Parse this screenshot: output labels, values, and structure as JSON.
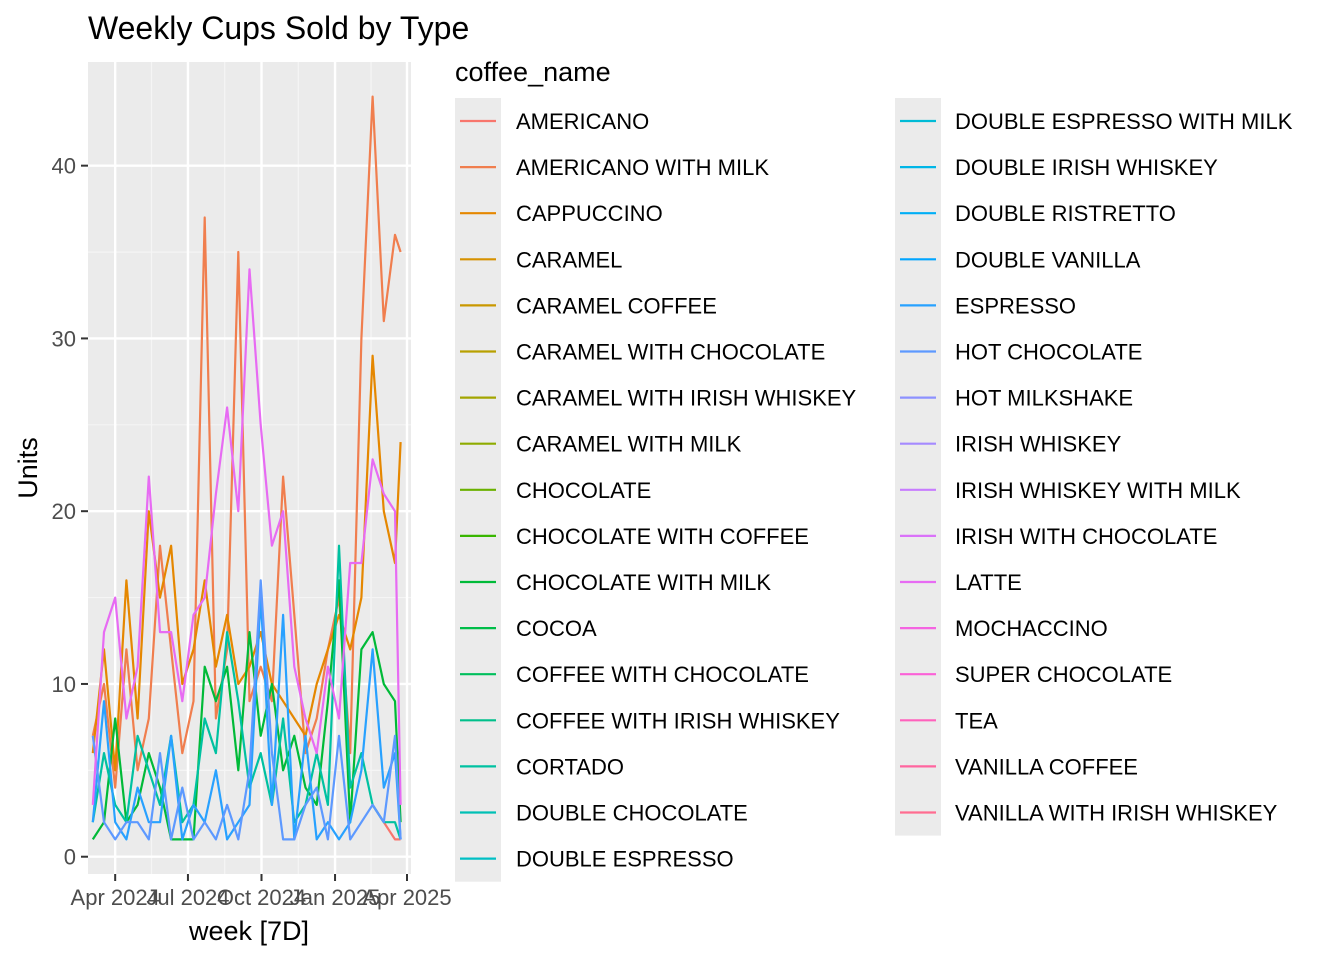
{
  "chart_data": {
    "type": "line",
    "title": "Weekly Cups Sold by Type",
    "xlabel": "week [7D]",
    "ylabel": "Units",
    "legend_title": "coffee_name",
    "legend_placement": "right",
    "grid": true,
    "ylim": [
      -1,
      46
    ],
    "xlim": [
      "2024-02-27",
      "2025-04-06"
    ],
    "x_ticks": [
      {
        "date": "2024-04-01",
        "label": "Apr 2024"
      },
      {
        "date": "2024-07-01",
        "label": "Jul 2024"
      },
      {
        "date": "2024-10-01",
        "label": "Oct 2024"
      },
      {
        "date": "2025-01-01",
        "label": "Jan 2025"
      },
      {
        "date": "2025-04-01",
        "label": "Apr 2025"
      }
    ],
    "y_ticks": [
      0,
      10,
      20,
      30,
      40
    ],
    "x": [
      "2024-03-04",
      "2024-03-18",
      "2024-04-01",
      "2024-04-15",
      "2024-04-29",
      "2024-05-13",
      "2024-05-27",
      "2024-06-10",
      "2024-06-24",
      "2024-07-08",
      "2024-07-22",
      "2024-08-05",
      "2024-08-19",
      "2024-09-02",
      "2024-09-16",
      "2024-09-30",
      "2024-10-14",
      "2024-10-28",
      "2024-11-11",
      "2024-11-25",
      "2024-12-09",
      "2024-12-23",
      "2025-01-06",
      "2025-01-20",
      "2025-02-03",
      "2025-02-17",
      "2025-03-03",
      "2025-03-17",
      "2025-03-24"
    ],
    "series": [
      {
        "name": "AMERICANO",
        "color": "#F8766D",
        "values": [
          null,
          null,
          null,
          null,
          null,
          null,
          null,
          null,
          null,
          null,
          null,
          null,
          null,
          null,
          null,
          null,
          null,
          null,
          null,
          null,
          null,
          null,
          null,
          null,
          null,
          3,
          2,
          1,
          1
        ]
      },
      {
        "name": "AMERICANO WITH MILK",
        "color": "#F07E4E",
        "values": [
          7,
          10,
          4,
          12,
          5,
          8,
          18,
          12,
          6,
          9,
          37,
          8,
          12,
          35,
          9,
          11,
          9,
          22,
          14,
          6,
          8,
          12,
          15,
          6,
          30,
          44,
          31,
          36,
          35
        ]
      },
      {
        "name": "CAPPUCCINO",
        "color": "#E58700",
        "values": [
          6,
          12,
          5,
          16,
          8,
          20,
          15,
          18,
          10,
          12,
          16,
          11,
          14,
          10,
          11,
          13,
          10,
          9,
          8,
          7,
          10,
          12,
          14,
          12,
          15,
          29,
          20,
          17,
          24
        ]
      },
      {
        "name": "CARAMEL",
        "color": "#D69100",
        "values": [
          null,
          null,
          null,
          null,
          null,
          null,
          null,
          null,
          null,
          null,
          null,
          null,
          null,
          null,
          null,
          null,
          null,
          null,
          null,
          null,
          null,
          null,
          null,
          null,
          null,
          null,
          null,
          null,
          null
        ]
      },
      {
        "name": "CARAMEL COFFEE",
        "color": "#C99800",
        "values": [
          null,
          null,
          null,
          null,
          null,
          null,
          null,
          null,
          null,
          null,
          null,
          null,
          null,
          null,
          null,
          null,
          null,
          null,
          null,
          null,
          null,
          null,
          null,
          null,
          null,
          null,
          null,
          null,
          null
        ]
      },
      {
        "name": "CARAMEL WITH CHOCOLATE",
        "color": "#B8A000",
        "values": [
          null,
          null,
          null,
          null,
          null,
          null,
          null,
          null,
          null,
          null,
          null,
          null,
          null,
          null,
          null,
          null,
          null,
          null,
          null,
          null,
          null,
          null,
          null,
          null,
          null,
          null,
          null,
          null,
          null
        ]
      },
      {
        "name": "CARAMEL WITH IRISH WHISKEY",
        "color": "#A3A500",
        "values": [
          null,
          null,
          null,
          null,
          null,
          null,
          null,
          null,
          null,
          null,
          null,
          null,
          null,
          null,
          null,
          null,
          null,
          null,
          null,
          null,
          null,
          null,
          null,
          null,
          null,
          null,
          null,
          null,
          null
        ]
      },
      {
        "name": "CARAMEL WITH MILK",
        "color": "#8EAB00",
        "values": [
          null,
          null,
          null,
          null,
          null,
          null,
          null,
          null,
          null,
          null,
          null,
          null,
          null,
          null,
          null,
          null,
          null,
          null,
          null,
          null,
          null,
          null,
          null,
          null,
          null,
          null,
          null,
          null,
          null
        ]
      },
      {
        "name": "CHOCOLATE",
        "color": "#6BB100",
        "values": [
          null,
          null,
          null,
          null,
          null,
          null,
          null,
          null,
          null,
          null,
          null,
          null,
          null,
          null,
          null,
          null,
          null,
          null,
          null,
          null,
          null,
          null,
          null,
          null,
          null,
          null,
          null,
          null,
          null
        ]
      },
      {
        "name": "CHOCOLATE WITH COFFEE",
        "color": "#39B600",
        "values": [
          null,
          null,
          null,
          null,
          null,
          null,
          null,
          null,
          null,
          null,
          null,
          null,
          null,
          null,
          null,
          null,
          null,
          null,
          null,
          null,
          null,
          null,
          null,
          null,
          null,
          null,
          null,
          null,
          null
        ]
      },
      {
        "name": "CHOCOLATE WITH MILK",
        "color": "#00BA38",
        "values": [
          1,
          2,
          8,
          2,
          3,
          6,
          4,
          1,
          1,
          1,
          11,
          9,
          11,
          5,
          13,
          7,
          10,
          5,
          7,
          4,
          3,
          9,
          16,
          2,
          12,
          13,
          10,
          9,
          2
        ]
      },
      {
        "name": "COCOA",
        "color": "#00BD49",
        "values": [
          null,
          null,
          null,
          null,
          null,
          null,
          null,
          null,
          null,
          null,
          null,
          null,
          null,
          null,
          null,
          null,
          null,
          null,
          null,
          null,
          null,
          null,
          null,
          null,
          null,
          null,
          null,
          null,
          null
        ]
      },
      {
        "name": "COFFEE WITH CHOCOLATE",
        "color": "#00BF5C",
        "values": [
          null,
          null,
          null,
          null,
          null,
          null,
          null,
          null,
          null,
          null,
          null,
          null,
          null,
          null,
          null,
          null,
          null,
          null,
          null,
          null,
          null,
          null,
          null,
          null,
          null,
          null,
          null,
          null,
          null
        ]
      },
      {
        "name": "COFFEE WITH IRISH WHISKEY",
        "color": "#00C08B",
        "values": [
          null,
          null,
          null,
          null,
          null,
          null,
          null,
          null,
          null,
          null,
          null,
          null,
          null,
          null,
          null,
          null,
          null,
          null,
          null,
          null,
          null,
          null,
          null,
          null,
          null,
          null,
          null,
          null,
          null
        ]
      },
      {
        "name": "CORTADO",
        "color": "#00C1A1",
        "values": [
          2,
          6,
          3,
          2,
          7,
          5,
          3,
          7,
          2,
          3,
          8,
          6,
          13,
          9,
          4,
          6,
          3,
          8,
          2,
          3,
          6,
          3,
          18,
          4,
          6,
          3,
          2,
          2,
          1
        ]
      },
      {
        "name": "DOUBLE CHOCOLATE",
        "color": "#00C0B5",
        "values": [
          null,
          null,
          null,
          null,
          null,
          null,
          null,
          null,
          null,
          null,
          null,
          null,
          null,
          null,
          null,
          null,
          null,
          null,
          null,
          null,
          null,
          null,
          null,
          null,
          null,
          null,
          null,
          null,
          null
        ]
      },
      {
        "name": "DOUBLE ESPRESSO",
        "color": "#00BFC4",
        "values": [
          null,
          null,
          null,
          null,
          null,
          null,
          null,
          null,
          null,
          null,
          null,
          null,
          null,
          null,
          null,
          null,
          null,
          null,
          null,
          null,
          null,
          null,
          null,
          null,
          null,
          null,
          null,
          null,
          null
        ]
      },
      {
        "name": "DOUBLE ESPRESSO WITH MILK",
        "color": "#00BBD6",
        "values": [
          null,
          null,
          null,
          null,
          null,
          null,
          null,
          null,
          null,
          null,
          null,
          null,
          null,
          null,
          null,
          null,
          null,
          null,
          null,
          null,
          null,
          null,
          null,
          null,
          null,
          null,
          null,
          null,
          null
        ]
      },
      {
        "name": "DOUBLE IRISH WHISKEY",
        "color": "#00B6E7",
        "values": [
          null,
          null,
          null,
          null,
          null,
          null,
          null,
          null,
          null,
          null,
          null,
          null,
          null,
          null,
          null,
          null,
          null,
          null,
          null,
          null,
          null,
          null,
          null,
          null,
          null,
          null,
          null,
          null,
          null
        ]
      },
      {
        "name": "DOUBLE RISTRETTO",
        "color": "#00AEF6",
        "values": [
          null,
          null,
          null,
          null,
          null,
          null,
          null,
          null,
          null,
          null,
          null,
          null,
          null,
          null,
          null,
          null,
          null,
          null,
          null,
          null,
          null,
          null,
          null,
          null,
          null,
          null,
          null,
          null,
          null
        ]
      },
      {
        "name": "DOUBLE VANILLA",
        "color": "#00A5FF",
        "values": [
          null,
          null,
          null,
          null,
          null,
          null,
          null,
          null,
          null,
          null,
          null,
          null,
          null,
          null,
          null,
          null,
          null,
          null,
          null,
          null,
          null,
          null,
          null,
          null,
          null,
          null,
          null,
          null,
          null
        ]
      },
      {
        "name": "ESPRESSO",
        "color": "#28A1FF",
        "values": [
          2,
          9,
          2,
          1,
          4,
          2,
          2,
          7,
          1,
          3,
          2,
          5,
          1,
          2,
          3,
          15,
          3,
          14,
          1,
          7,
          1,
          2,
          1,
          2,
          5,
          12,
          4,
          6,
          1
        ]
      },
      {
        "name": "HOT CHOCOLATE",
        "color": "#5D99FF",
        "values": [
          7,
          2,
          1,
          2,
          2,
          1,
          6,
          1,
          4,
          1,
          2,
          1,
          3,
          1,
          5,
          16,
          6,
          1,
          1,
          3,
          4,
          1,
          7,
          1,
          2,
          3,
          2,
          7,
          1
        ]
      },
      {
        "name": "HOT MILKSHAKE",
        "color": "#8D91FF",
        "values": [
          null,
          null,
          null,
          null,
          null,
          null,
          null,
          null,
          null,
          null,
          null,
          null,
          null,
          null,
          null,
          null,
          null,
          null,
          null,
          null,
          null,
          null,
          null,
          null,
          null,
          null,
          null,
          null,
          null
        ]
      },
      {
        "name": "IRISH WHISKEY",
        "color": "#A58AFF",
        "values": [
          null,
          null,
          null,
          null,
          null,
          null,
          null,
          null,
          null,
          null,
          null,
          null,
          null,
          null,
          null,
          null,
          null,
          null,
          null,
          null,
          null,
          null,
          null,
          null,
          null,
          null,
          null,
          null,
          null
        ]
      },
      {
        "name": "IRISH WHISKEY WITH MILK",
        "color": "#C77CFF",
        "values": [
          null,
          null,
          null,
          null,
          null,
          null,
          null,
          null,
          null,
          null,
          null,
          null,
          null,
          null,
          null,
          null,
          null,
          null,
          null,
          null,
          null,
          null,
          null,
          null,
          null,
          null,
          null,
          null,
          null
        ]
      },
      {
        "name": "IRISH WITH CHOCOLATE",
        "color": "#DA72F9",
        "values": [
          null,
          null,
          null,
          null,
          null,
          null,
          null,
          null,
          null,
          null,
          null,
          null,
          null,
          null,
          null,
          null,
          null,
          null,
          null,
          null,
          null,
          null,
          null,
          null,
          null,
          null,
          null,
          null,
          null
        ]
      },
      {
        "name": "LATTE",
        "color": "#E76BF3",
        "values": [
          3,
          13,
          15,
          8,
          11,
          22,
          13,
          13,
          9,
          14,
          15,
          21,
          26,
          20,
          34,
          25,
          18,
          20,
          11,
          8,
          6,
          11,
          8,
          17,
          17,
          23,
          21,
          20,
          3
        ]
      },
      {
        "name": "MOCHACCINO",
        "color": "#F464E1",
        "values": [
          null,
          null,
          null,
          null,
          null,
          null,
          null,
          null,
          null,
          null,
          null,
          null,
          null,
          null,
          null,
          null,
          null,
          null,
          null,
          null,
          null,
          null,
          null,
          null,
          null,
          null,
          null,
          null,
          null
        ]
      },
      {
        "name": "SUPER CHOCOLATE",
        "color": "#FB61D7",
        "values": [
          null,
          null,
          null,
          null,
          null,
          null,
          null,
          null,
          null,
          null,
          null,
          null,
          null,
          null,
          null,
          null,
          null,
          null,
          null,
          null,
          null,
          null,
          null,
          null,
          null,
          null,
          null,
          null,
          null
        ]
      },
      {
        "name": "TEA",
        "color": "#FF62BC",
        "values": [
          null,
          null,
          null,
          null,
          null,
          null,
          null,
          null,
          null,
          null,
          null,
          null,
          null,
          null,
          null,
          null,
          null,
          null,
          null,
          null,
          null,
          null,
          null,
          null,
          null,
          null,
          null,
          null,
          null
        ]
      },
      {
        "name": "VANILLA COFFEE",
        "color": "#FF659F",
        "values": [
          null,
          null,
          null,
          null,
          null,
          null,
          null,
          null,
          null,
          null,
          null,
          null,
          null,
          null,
          null,
          null,
          null,
          null,
          null,
          null,
          null,
          null,
          null,
          null,
          null,
          null,
          null,
          null,
          null
        ]
      },
      {
        "name": "VANILLA WITH IRISH WHISKEY",
        "color": "#FF6C91",
        "values": [
          null,
          null,
          null,
          null,
          null,
          null,
          null,
          null,
          null,
          null,
          null,
          null,
          null,
          null,
          null,
          null,
          null,
          null,
          null,
          null,
          null,
          null,
          null,
          null,
          null,
          null,
          null,
          null,
          null
        ]
      }
    ]
  }
}
